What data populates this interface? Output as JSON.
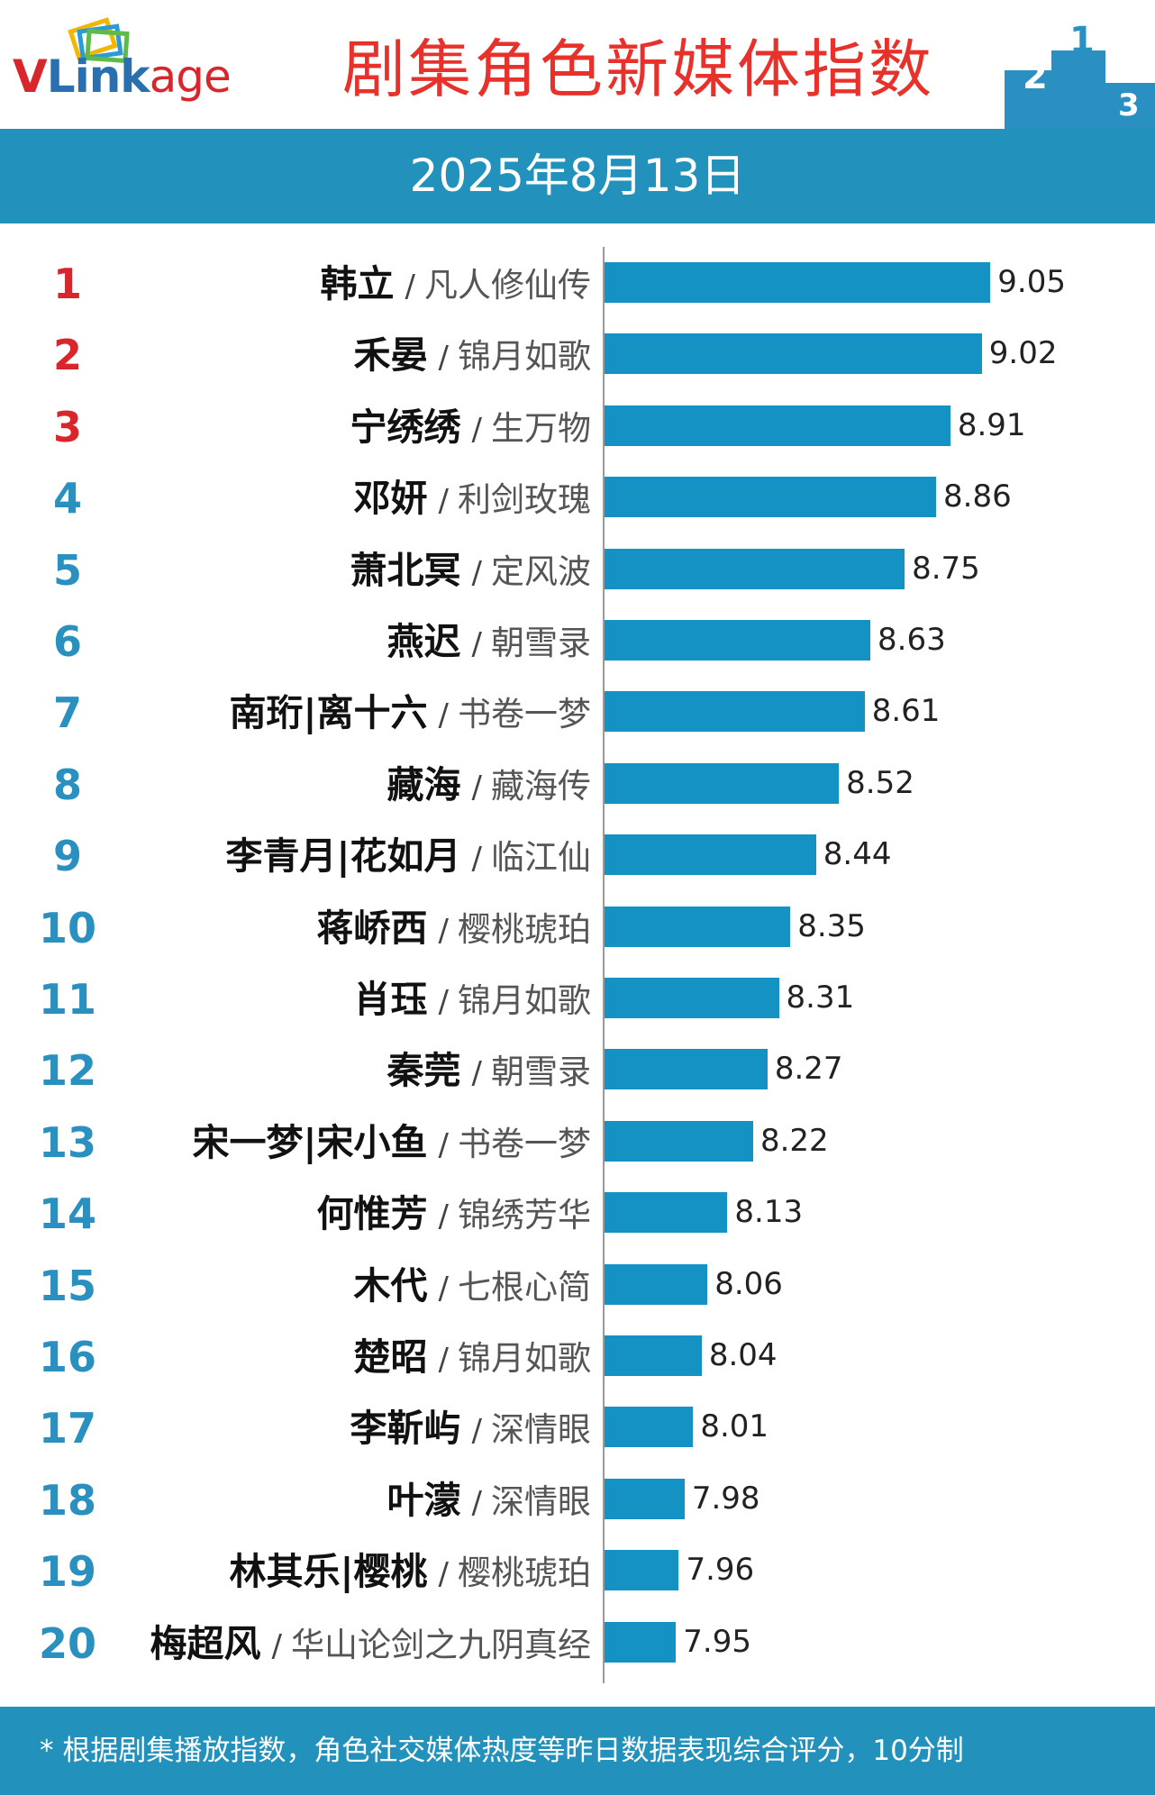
{
  "header": {
    "logo_text": "VLinkage",
    "title": "剧集角色新媒体指数",
    "podium_numbers": [
      "2",
      "1",
      "3"
    ]
  },
  "date": "2025年8月13日",
  "footnote": "* 根据剧集播放指数，角色社交媒体热度等昨日数据表现综合评分，10分制",
  "colors": {
    "bar": "#1592c4",
    "banner": "#2292bc",
    "title": "#e8312b",
    "top_rank": "#d8262c",
    "rank": "#2a90c0"
  },
  "chart_data": {
    "type": "bar",
    "orientation": "horizontal",
    "title": "剧集角色新媒体指数",
    "xlabel": "",
    "ylabel": "",
    "xlim": [
      7.7,
      9.15
    ],
    "grid": false,
    "rows": [
      {
        "rank": "1",
        "character": "韩立",
        "show": "凡人修仙传",
        "value": 9.05
      },
      {
        "rank": "2",
        "character": "禾晏",
        "show": "锦月如歌",
        "value": 9.02
      },
      {
        "rank": "3",
        "character": "宁绣绣",
        "show": "生万物",
        "value": 8.91
      },
      {
        "rank": "4",
        "character": "邓妍",
        "show": "利剑玫瑰",
        "value": 8.86
      },
      {
        "rank": "5",
        "character": "萧北冥",
        "show": "定风波",
        "value": 8.75
      },
      {
        "rank": "6",
        "character": "燕迟",
        "show": "朝雪录",
        "value": 8.63
      },
      {
        "rank": "7",
        "character": "南珩|离十六",
        "show": "书卷一梦",
        "value": 8.61
      },
      {
        "rank": "8",
        "character": "藏海",
        "show": "藏海传",
        "value": 8.52
      },
      {
        "rank": "9",
        "character": "李青月|花如月",
        "show": "临江仙",
        "value": 8.44
      },
      {
        "rank": "10",
        "character": "蒋峤西",
        "show": "樱桃琥珀",
        "value": 8.35
      },
      {
        "rank": "11",
        "character": "肖珏",
        "show": "锦月如歌",
        "value": 8.31
      },
      {
        "rank": "12",
        "character": "秦莞",
        "show": "朝雪录",
        "value": 8.27
      },
      {
        "rank": "13",
        "character": "宋一梦|宋小鱼",
        "show": "书卷一梦",
        "value": 8.22
      },
      {
        "rank": "14",
        "character": "何惟芳",
        "show": "锦绣芳华",
        "value": 8.13
      },
      {
        "rank": "15",
        "character": "木代",
        "show": "七根心简",
        "value": 8.06
      },
      {
        "rank": "16",
        "character": "楚昭",
        "show": "锦月如歌",
        "value": 8.04
      },
      {
        "rank": "17",
        "character": "李靳屿",
        "show": "深情眼",
        "value": 8.01
      },
      {
        "rank": "18",
        "character": "叶濛",
        "show": "深情眼",
        "value": 7.98
      },
      {
        "rank": "19",
        "character": "林其乐|樱桃",
        "show": "樱桃琥珀",
        "value": 7.96
      },
      {
        "rank": "20",
        "character": "梅超风",
        "show": "华山论剑之九阴真经",
        "value": 7.95
      }
    ]
  }
}
